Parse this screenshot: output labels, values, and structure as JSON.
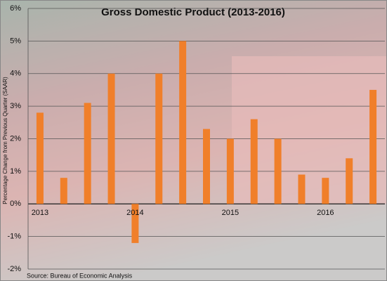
{
  "chart_data": {
    "type": "bar",
    "title": "Gross Domestic Product (2013-2016)",
    "y_label": "Percentage Change from Previous Quarter (SAAR)",
    "source": "Source: Bureau of Economic Analysis",
    "categories": [
      "2013",
      null,
      null,
      null,
      "2014",
      null,
      null,
      null,
      "2015",
      null,
      null,
      null,
      "2016",
      null,
      null
    ],
    "values": [
      2.8,
      0.8,
      3.1,
      4.0,
      -1.2,
      4.0,
      5.0,
      2.3,
      2.0,
      2.6,
      2.0,
      0.9,
      0.8,
      1.4,
      3.5
    ],
    "color": "#f07f2a",
    "ylim": [
      -2,
      6
    ],
    "yticks": [
      {
        "value": -2,
        "label": "-2%"
      },
      {
        "value": -1,
        "label": "-1%"
      },
      {
        "value": 0,
        "label": "0%"
      },
      {
        "value": 1,
        "label": "1%"
      },
      {
        "value": 2,
        "label": "2%"
      },
      {
        "value": 3,
        "label": "3%"
      },
      {
        "value": 4,
        "label": "4%"
      },
      {
        "value": 5,
        "label": "5%"
      },
      {
        "value": 6,
        "label": "6%"
      }
    ],
    "grid": true
  }
}
